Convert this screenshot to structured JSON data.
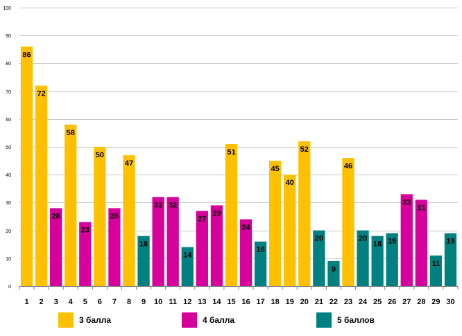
{
  "chart_data": {
    "type": "bar",
    "title": "",
    "xlabel": "",
    "ylabel": "",
    "ylim": [
      0,
      100
    ],
    "yticks": [
      0,
      10,
      20,
      30,
      40,
      50,
      60,
      70,
      80,
      90,
      100
    ],
    "grid": true,
    "categories": [
      "1",
      "2",
      "3",
      "4",
      "5",
      "6",
      "7",
      "8",
      "9",
      "10",
      "11",
      "12",
      "13",
      "14",
      "15",
      "16",
      "17",
      "18",
      "19",
      "20",
      "21",
      "22",
      "23",
      "24",
      "25",
      "26",
      "27",
      "28",
      "29",
      "30"
    ],
    "values": [
      86,
      72,
      28,
      58,
      23,
      50,
      28,
      47,
      18,
      32,
      32,
      14,
      27,
      29,
      51,
      24,
      16,
      45,
      40,
      52,
      20,
      9,
      46,
      20,
      18,
      19,
      33,
      31,
      11,
      19
    ],
    "groups": [
      "g3",
      "g3",
      "g4",
      "g3",
      "g4",
      "g3",
      "g4",
      "g3",
      "g5",
      "g4",
      "g4",
      "g5",
      "g4",
      "g4",
      "g3",
      "g4",
      "g5",
      "g3",
      "g3",
      "g3",
      "g5",
      "g5",
      "g3",
      "g5",
      "g5",
      "g5",
      "g4",
      "g4",
      "g5",
      "g5"
    ],
    "legend": [
      {
        "key": "g3",
        "label": "3 балла",
        "color": "#FFC000"
      },
      {
        "key": "g4",
        "label": "4 балла",
        "color": "#D6009A"
      },
      {
        "key": "g5",
        "label": "5 баллов",
        "color": "#008080"
      }
    ],
    "legend_position": "bottom"
  }
}
